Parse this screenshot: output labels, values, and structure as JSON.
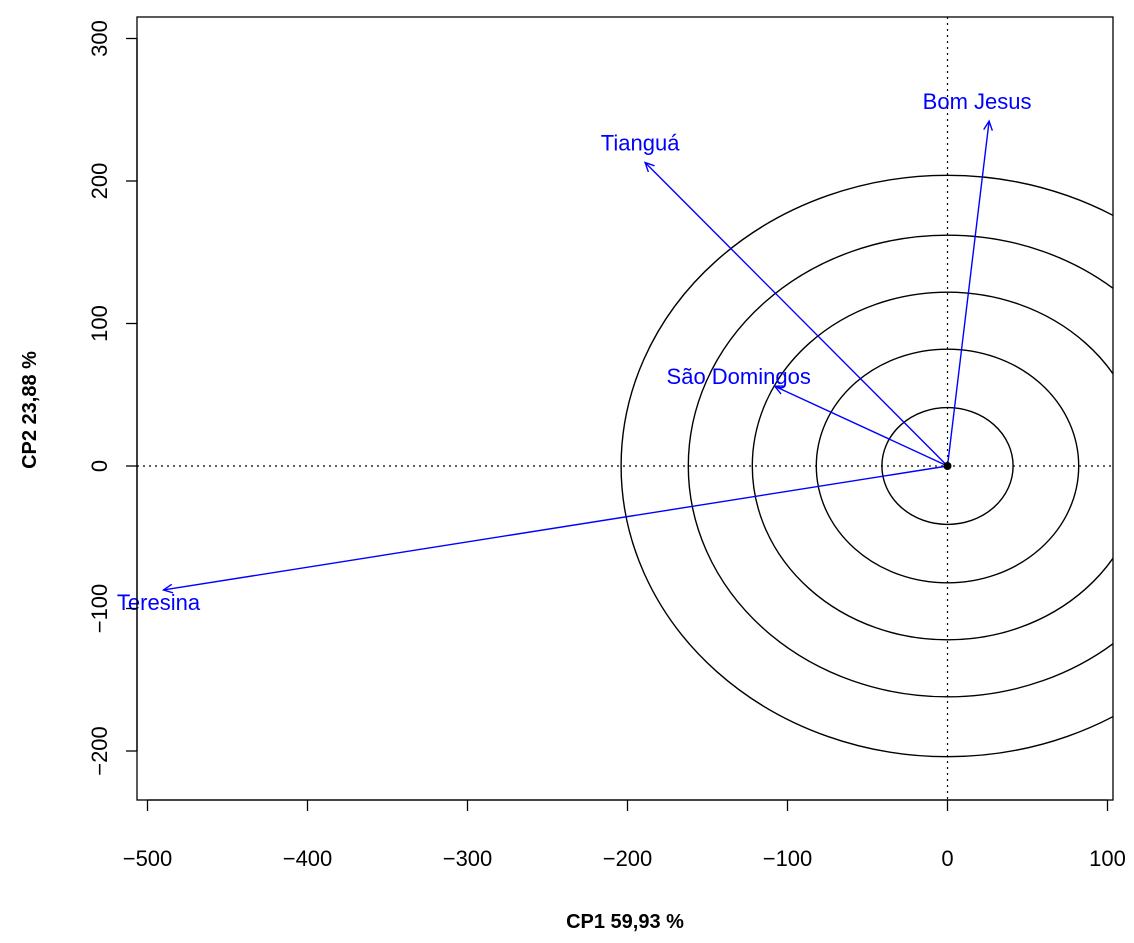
{
  "chart_data": {
    "type": "biplot",
    "xlabel": "CP1 59,93 %",
    "ylabel": "CP2 23,88 %",
    "xlim": [
      -510,
      105
    ],
    "ylim": [
      -235,
      315
    ],
    "xticks": [
      -500,
      -400,
      -300,
      -200,
      -100,
      0,
      100
    ],
    "yticks": [
      -200,
      -100,
      0,
      100,
      200,
      300
    ],
    "xtick_labels": [
      "−500",
      "−400",
      "−300",
      "−200",
      "−100",
      "0",
      "100"
    ],
    "ytick_labels": [
      "−200",
      "−100",
      "0",
      "100",
      "200",
      "300"
    ],
    "origin": [
      0,
      0
    ],
    "reference_lines": {
      "x": 0,
      "y": 0,
      "style": "dotted"
    },
    "circles": {
      "center": [
        0,
        0
      ],
      "radii": [
        41,
        82,
        122,
        162,
        204
      ],
      "color": "#000000"
    },
    "vectors": [
      {
        "label": "Bom Jesus",
        "x": 26,
        "y": 242,
        "color": "#0000ff"
      },
      {
        "label": "Tianguá",
        "x": -189,
        "y": 213,
        "color": "#0000ff"
      },
      {
        "label": "São Domingos",
        "x": -108,
        "y": 56,
        "color": "#0000ff"
      },
      {
        "label": "Teresina",
        "x": -490,
        "y": -87,
        "color": "#0000ff"
      }
    ]
  }
}
